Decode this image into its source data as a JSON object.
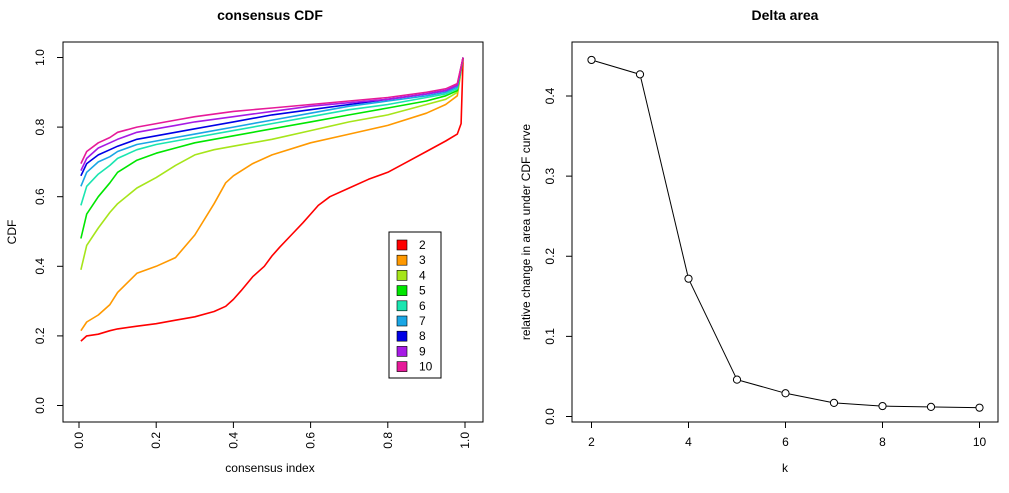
{
  "chart_data": [
    {
      "type": "line",
      "title": "consensus CDF",
      "xlabel": "consensus index",
      "ylabel": "CDF",
      "xlim": [
        0,
        1
      ],
      "ylim": [
        0,
        1
      ],
      "xticks": [
        "0.0",
        "0.2",
        "0.4",
        "0.6",
        "0.8",
        "1.0"
      ],
      "yticks": [
        "0.0",
        "0.2",
        "0.4",
        "0.6",
        "0.8",
        "1.0"
      ],
      "legend_position": "bottom-right",
      "series": [
        {
          "name": "2",
          "color": "#ff0000",
          "x": [
            0.005,
            0.02,
            0.05,
            0.08,
            0.1,
            0.15,
            0.2,
            0.25,
            0.3,
            0.35,
            0.38,
            0.4,
            0.42,
            0.45,
            0.48,
            0.5,
            0.52,
            0.55,
            0.58,
            0.6,
            0.62,
            0.65,
            0.7,
            0.75,
            0.8,
            0.85,
            0.9,
            0.95,
            0.98,
            0.99,
            0.995
          ],
          "y": [
            0.185,
            0.2,
            0.205,
            0.215,
            0.22,
            0.228,
            0.235,
            0.245,
            0.255,
            0.27,
            0.285,
            0.305,
            0.33,
            0.37,
            0.4,
            0.43,
            0.455,
            0.49,
            0.525,
            0.55,
            0.575,
            0.6,
            0.625,
            0.65,
            0.67,
            0.7,
            0.73,
            0.76,
            0.78,
            0.81,
            1.0
          ]
        },
        {
          "name": "3",
          "color": "#ff9900",
          "x": [
            0.005,
            0.02,
            0.05,
            0.08,
            0.1,
            0.15,
            0.2,
            0.25,
            0.3,
            0.35,
            0.38,
            0.4,
            0.45,
            0.5,
            0.6,
            0.7,
            0.8,
            0.9,
            0.95,
            0.98,
            0.995
          ],
          "y": [
            0.215,
            0.24,
            0.26,
            0.29,
            0.325,
            0.38,
            0.4,
            0.425,
            0.49,
            0.58,
            0.64,
            0.66,
            0.695,
            0.72,
            0.755,
            0.78,
            0.805,
            0.84,
            0.865,
            0.89,
            1.0
          ]
        },
        {
          "name": "4",
          "color": "#a6e51a",
          "x": [
            0.005,
            0.02,
            0.05,
            0.08,
            0.1,
            0.15,
            0.2,
            0.25,
            0.3,
            0.35,
            0.4,
            0.5,
            0.6,
            0.7,
            0.8,
            0.9,
            0.95,
            0.98,
            0.995
          ],
          "y": [
            0.39,
            0.46,
            0.51,
            0.555,
            0.58,
            0.625,
            0.655,
            0.69,
            0.72,
            0.735,
            0.745,
            0.765,
            0.79,
            0.815,
            0.835,
            0.865,
            0.88,
            0.9,
            1.0
          ]
        },
        {
          "name": "5",
          "color": "#00e600",
          "x": [
            0.005,
            0.02,
            0.05,
            0.08,
            0.1,
            0.15,
            0.2,
            0.25,
            0.3,
            0.4,
            0.5,
            0.6,
            0.7,
            0.8,
            0.9,
            0.95,
            0.98,
            0.995
          ],
          "y": [
            0.48,
            0.55,
            0.6,
            0.64,
            0.67,
            0.705,
            0.725,
            0.74,
            0.755,
            0.775,
            0.795,
            0.815,
            0.835,
            0.855,
            0.875,
            0.89,
            0.905,
            1.0
          ]
        },
        {
          "name": "6",
          "color": "#1ae5b0",
          "x": [
            0.005,
            0.02,
            0.05,
            0.08,
            0.1,
            0.15,
            0.2,
            0.25,
            0.3,
            0.4,
            0.5,
            0.6,
            0.7,
            0.8,
            0.9,
            0.95,
            0.98,
            0.995
          ],
          "y": [
            0.575,
            0.63,
            0.665,
            0.69,
            0.71,
            0.735,
            0.75,
            0.76,
            0.77,
            0.79,
            0.81,
            0.83,
            0.85,
            0.865,
            0.885,
            0.895,
            0.91,
            1.0
          ]
        },
        {
          "name": "7",
          "color": "#1aa6e5",
          "x": [
            0.005,
            0.02,
            0.05,
            0.08,
            0.1,
            0.15,
            0.2,
            0.25,
            0.3,
            0.4,
            0.5,
            0.6,
            0.7,
            0.8,
            0.9,
            0.95,
            0.98,
            0.995
          ],
          "y": [
            0.63,
            0.67,
            0.7,
            0.715,
            0.73,
            0.75,
            0.76,
            0.77,
            0.78,
            0.8,
            0.82,
            0.84,
            0.86,
            0.875,
            0.89,
            0.9,
            0.915,
            1.0
          ]
        },
        {
          "name": "8",
          "color": "#0000e6",
          "x": [
            0.005,
            0.02,
            0.05,
            0.08,
            0.1,
            0.15,
            0.2,
            0.25,
            0.3,
            0.4,
            0.5,
            0.6,
            0.7,
            0.8,
            0.9,
            0.95,
            0.98,
            0.995
          ],
          "y": [
            0.66,
            0.695,
            0.72,
            0.735,
            0.745,
            0.765,
            0.775,
            0.785,
            0.795,
            0.815,
            0.835,
            0.85,
            0.865,
            0.88,
            0.895,
            0.905,
            0.92,
            1.0
          ]
        },
        {
          "name": "9",
          "color": "#a61ae5",
          "x": [
            0.005,
            0.02,
            0.05,
            0.08,
            0.1,
            0.15,
            0.2,
            0.25,
            0.3,
            0.4,
            0.5,
            0.6,
            0.7,
            0.8,
            0.9,
            0.95,
            0.98,
            0.995
          ],
          "y": [
            0.675,
            0.71,
            0.74,
            0.755,
            0.765,
            0.785,
            0.795,
            0.805,
            0.815,
            0.83,
            0.845,
            0.86,
            0.87,
            0.88,
            0.895,
            0.905,
            0.92,
            1.0
          ]
        },
        {
          "name": "10",
          "color": "#e61a99",
          "x": [
            0.005,
            0.02,
            0.05,
            0.08,
            0.1,
            0.15,
            0.2,
            0.25,
            0.3,
            0.4,
            0.5,
            0.6,
            0.7,
            0.8,
            0.9,
            0.95,
            0.98,
            0.995
          ],
          "y": [
            0.695,
            0.73,
            0.755,
            0.77,
            0.785,
            0.8,
            0.81,
            0.82,
            0.83,
            0.845,
            0.855,
            0.865,
            0.875,
            0.885,
            0.9,
            0.91,
            0.925,
            1.0
          ]
        }
      ]
    },
    {
      "type": "line",
      "title": "Delta area",
      "xlabel": "k",
      "ylabel": "relative change in area under CDF curve",
      "xlim": [
        2,
        10
      ],
      "ylim": [
        0,
        0.45
      ],
      "xticks": [
        "2",
        "4",
        "6",
        "8",
        "10"
      ],
      "yticks": [
        "0.0",
        "0.1",
        "0.2",
        "0.3",
        "0.4"
      ],
      "series": [
        {
          "color": "#000000",
          "x": [
            2,
            3,
            4,
            5,
            6,
            7,
            8,
            9,
            10
          ],
          "y": [
            0.445,
            0.427,
            0.172,
            0.046,
            0.029,
            0.017,
            0.013,
            0.012,
            0.011
          ]
        }
      ]
    }
  ]
}
